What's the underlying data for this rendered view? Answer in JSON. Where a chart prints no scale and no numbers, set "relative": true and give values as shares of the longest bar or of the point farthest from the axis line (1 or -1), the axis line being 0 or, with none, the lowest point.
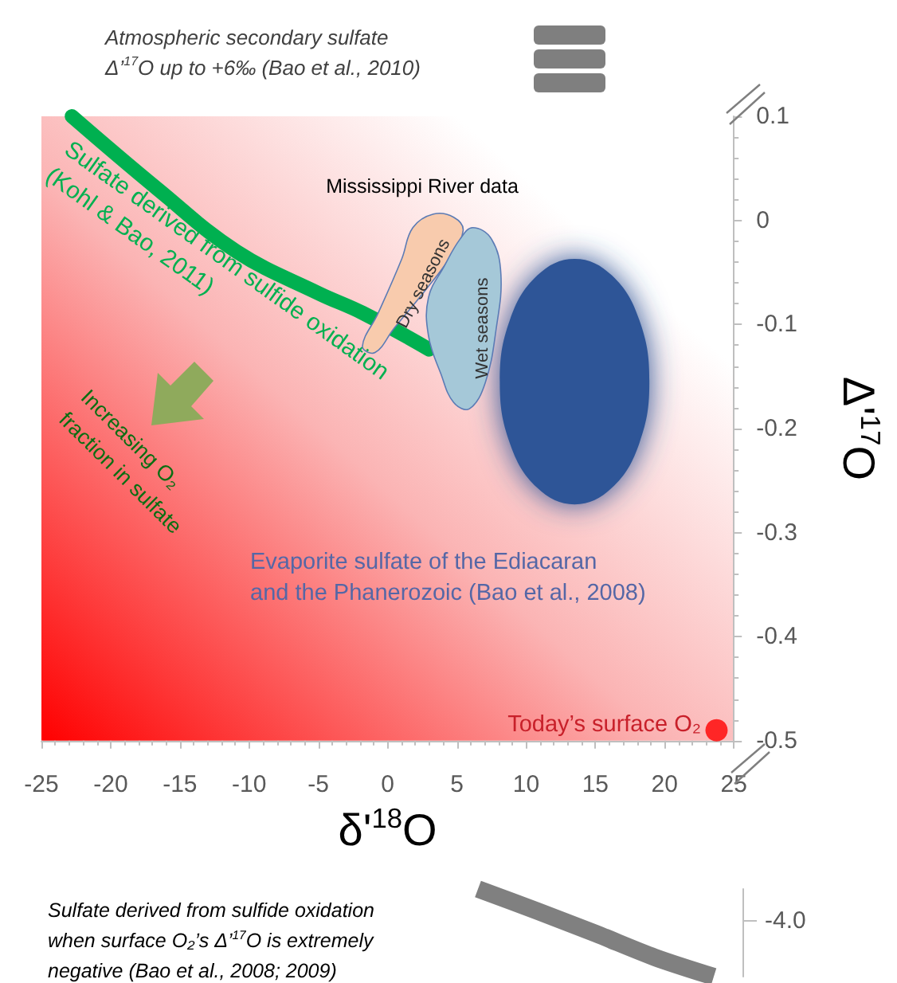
{
  "chart_data": [
    {
      "type": "line",
      "xlabel": "δ'$^{18}$O",
      "ylabel": "Δ'$^{17}$O",
      "xlim": [
        -25,
        25
      ],
      "ylim": [
        -0.5,
        0.1
      ],
      "xticks": [
        -25,
        -20,
        -15,
        -10,
        -5,
        0,
        5,
        10,
        15,
        20,
        25
      ],
      "yticks": [
        -0.5,
        -0.4,
        -0.3,
        -0.2,
        -0.1,
        0,
        0.1
      ],
      "grid": false,
      "annotations": [
        "Atmospheric secondary sulfate\nΔ’$^{17}$O up to +6‰ (Bao et al., 2010)",
        "Mississippi River data",
        "Increasing O₂\nfraction in sulfate"
      ],
      "series": [
        {
          "type": "line",
          "name": "Sulfate derived from sulfide oxidation\n(Kohl & Bao, 2011)",
          "color": "#00b050",
          "x": [
            -22.8,
            -16.6,
            -10.9,
            -5,
            -1.8,
            3.0
          ],
          "values": [
            0.1,
            0.03,
            -0.03,
            -0.07,
            -0.089,
            -0.124
          ]
        },
        {
          "type": "area",
          "name": "Dry seasons",
          "color": "#f8cbad",
          "x": [
            -1.82,
            -0.68,
            1.02,
            1.82,
            3.3,
            4.77,
            5.45,
            4.43,
            2.73,
            0.45,
            -0.91
          ],
          "values": [
            -0.121,
            -0.089,
            -0.037,
            -0.007,
            0.006,
            0.003,
            -0.01,
            -0.037,
            -0.067,
            -0.104,
            -0.127
          ]
        },
        {
          "type": "area",
          "name": "Wet seasons",
          "color": "#a5c8d8",
          "x": [
            5.23,
            6.14,
            7.5,
            8.18,
            7.84,
            7.05,
            5.91,
            4.77,
            3.86,
            2.95,
            2.95,
            4.09
          ],
          "values": [
            -0.018,
            -0.007,
            -0.018,
            -0.052,
            -0.104,
            -0.156,
            -0.181,
            -0.175,
            -0.148,
            -0.111,
            -0.074,
            -0.044
          ]
        },
        {
          "type": "area",
          "name": "Evaporite sulfate of the Ediacaran\nand the Phanerozoic (Bao et al., 2008)",
          "color": "#2f5597",
          "x": [
            18.9,
            18.18,
            16.2,
            13.5,
            10.8,
            8.82,
            8.1,
            8.82,
            10.8,
            13.5,
            16.2,
            18.18
          ],
          "values": [
            -0.155,
            -0.096,
            -0.053,
            -0.037,
            -0.053,
            -0.096,
            -0.155,
            -0.214,
            -0.257,
            -0.273,
            -0.257,
            -0.214
          ]
        },
        {
          "type": "scatter",
          "name": "Today’s surface O₂",
          "color": "#ff0000",
          "x": [
            23.75
          ],
          "values": [
            -0.49
          ]
        }
      ]
    },
    {
      "type": "line",
      "relative": true,
      "categories": [
        null,
        null,
        null,
        null,
        null
      ],
      "annotations": [
        "Sulfate derived from sulfide oxidation\nwhen surface O₂’s Δ’$^{17}$O is extremely\nnegative (Bao et al., 2008; 2009)",
        "-4.0"
      ],
      "series": [
        {
          "color": "#808080",
          "values": [
            1,
            0.75,
            0.49,
            0.22,
            0
          ]
        }
      ]
    }
  ]
}
